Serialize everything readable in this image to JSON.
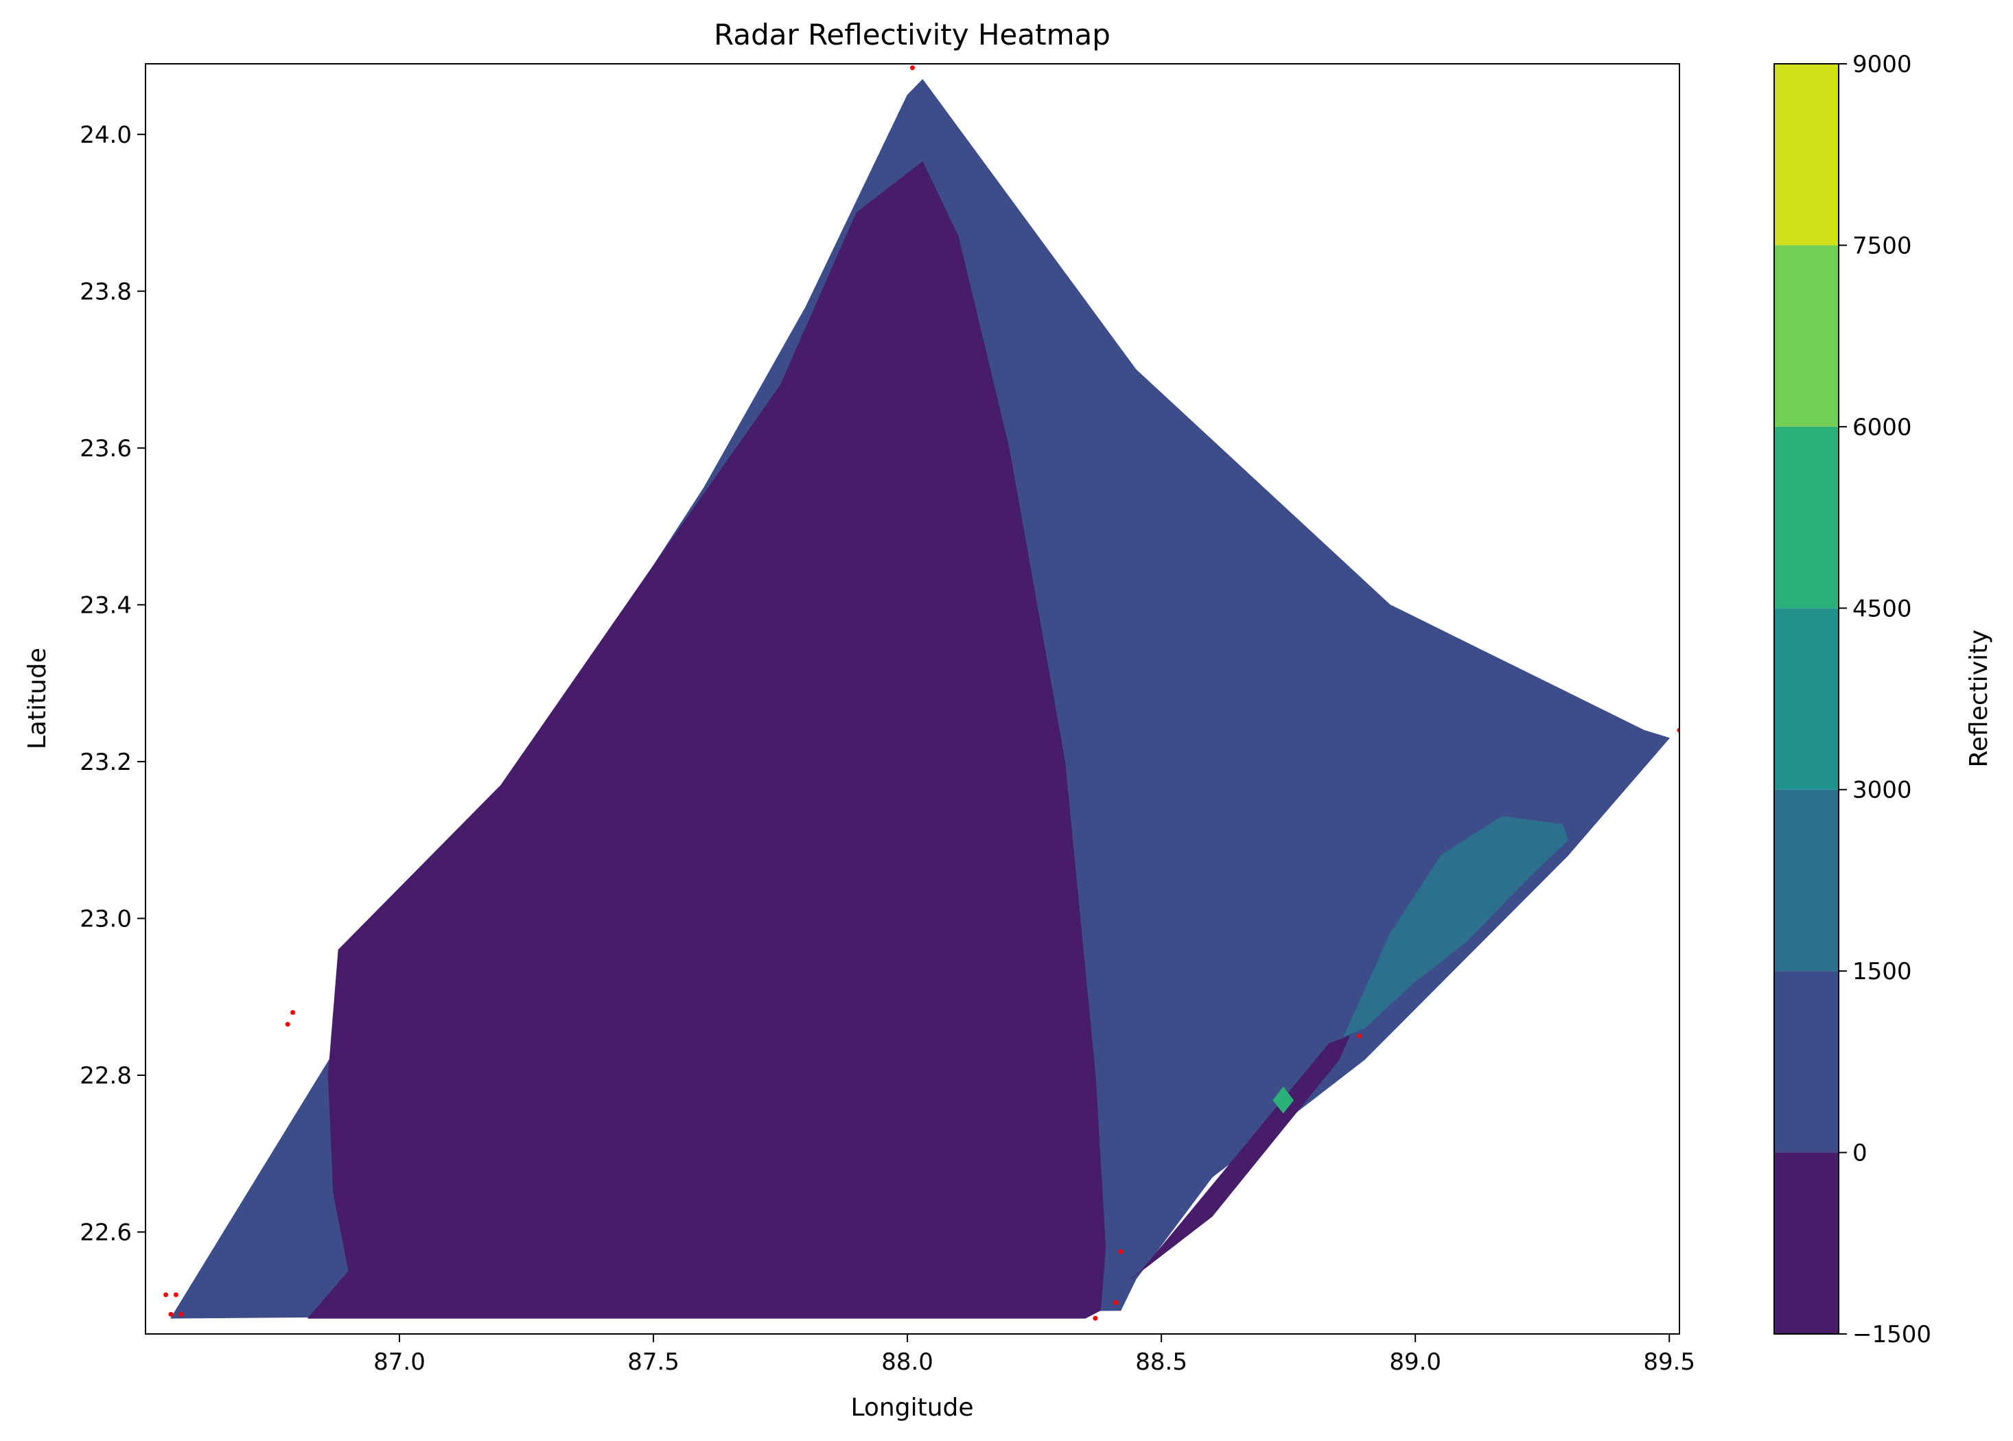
{
  "chart_data": [
    {
      "type": "heatmap",
      "subtype": "filled-contour",
      "title": "Radar Reflectivity Heatmap",
      "xlabel": "Longitude",
      "ylabel": "Latitude",
      "xlim": [
        86.5,
        89.52
      ],
      "ylim": [
        22.47,
        24.09
      ],
      "x_ticks": [
        87.0,
        87.5,
        88.0,
        88.5,
        89.0,
        89.5
      ],
      "x_tick_labels": [
        "87.0",
        "87.5",
        "88.0",
        "88.5",
        "89.0",
        "89.5"
      ],
      "y_ticks": [
        22.6,
        22.8,
        23.0,
        23.2,
        23.4,
        23.6,
        23.8,
        24.0
      ],
      "y_tick_labels": [
        "22.6",
        "22.8",
        "23.0",
        "23.2",
        "23.4",
        "23.6",
        "23.8",
        "24.0"
      ],
      "grid": false,
      "colorbar": {
        "label": "Reflectivity",
        "levels": [
          -1500,
          0,
          1500,
          3000,
          4500,
          6000,
          7500,
          9000
        ],
        "tick_labels": [
          "−1500",
          "0",
          "1500",
          "3000",
          "4500",
          "6000",
          "7500",
          "9000"
        ],
        "colors": [
          "#471c68",
          "#3c4d8a",
          "#2c708e",
          "#20918d",
          "#2ab17a",
          "#71cf56",
          "#d0e11c"
        ]
      },
      "regions": [
        {
          "level_range": [
            0,
            1500
          ],
          "color": "#3c4d8a",
          "polygon": [
            [
              86.55,
              22.49
            ],
            [
              86.72,
              22.67
            ],
            [
              86.9,
              22.86
            ],
            [
              87.1,
              23.06
            ],
            [
              87.35,
              23.3
            ],
            [
              87.6,
              23.55
            ],
            [
              87.8,
              23.78
            ],
            [
              88.0,
              24.05
            ],
            [
              88.03,
              24.07
            ],
            [
              88.45,
              23.7
            ],
            [
              88.95,
              23.4
            ],
            [
              89.45,
              23.24
            ],
            [
              89.5,
              23.23
            ],
            [
              89.3,
              23.08
            ],
            [
              88.9,
              22.82
            ],
            [
              88.6,
              22.67
            ],
            [
              88.45,
              22.54
            ],
            [
              88.42,
              22.5
            ],
            [
              86.55,
              22.49
            ]
          ]
        },
        {
          "level_range": [
            -1500,
            0
          ],
          "color": "#471c68",
          "polygon": [
            [
              86.82,
              22.49
            ],
            [
              86.9,
              22.55
            ],
            [
              86.87,
              22.65
            ],
            [
              86.86,
              22.8
            ],
            [
              86.88,
              22.96
            ],
            [
              87.2,
              23.17
            ],
            [
              87.5,
              23.45
            ],
            [
              87.75,
              23.68
            ],
            [
              87.9,
              23.9
            ],
            [
              88.03,
              23.965
            ],
            [
              88.1,
              23.87
            ],
            [
              88.2,
              23.6
            ],
            [
              88.31,
              23.2
            ],
            [
              88.37,
              22.8
            ],
            [
              88.39,
              22.58
            ],
            [
              88.38,
              22.5
            ],
            [
              88.35,
              22.49
            ]
          ]
        },
        {
          "level_range": [
            -1500,
            0
          ],
          "color": "#471c68",
          "polygon": [
            [
              88.44,
              22.54
            ],
            [
              88.6,
              22.62
            ],
            [
              88.85,
              22.82
            ],
            [
              88.87,
              22.85
            ],
            [
              88.83,
              22.84
            ],
            [
              88.55,
              22.62
            ],
            [
              88.46,
              22.55
            ]
          ]
        },
        {
          "level_range": [
            1500,
            3000
          ],
          "color": "#2c708e",
          "polygon": [
            [
              88.86,
              22.85
            ],
            [
              88.95,
              22.98
            ],
            [
              89.05,
              23.08
            ],
            [
              89.17,
              23.13
            ],
            [
              89.29,
              23.12
            ],
            [
              89.3,
              23.1
            ],
            [
              89.22,
              23.05
            ],
            [
              89.1,
              22.97
            ],
            [
              89.0,
              22.92
            ],
            [
              88.9,
              22.86
            ]
          ]
        },
        {
          "level_range": [
            3000,
            9000
          ],
          "color": "#2ab17a",
          "polygon": [
            [
              88.72,
              22.768
            ],
            [
              88.74,
              22.785
            ],
            [
              88.76,
              22.768
            ],
            [
              88.74,
              22.752
            ]
          ]
        }
      ],
      "scatter": {
        "color": "#ff0000",
        "points": [
          [
            88.01,
            24.085
          ],
          [
            86.54,
            22.52
          ],
          [
            86.56,
            22.52
          ],
          [
            86.55,
            22.495
          ],
          [
            86.57,
            22.495
          ],
          [
            86.79,
            22.88
          ],
          [
            86.78,
            22.865
          ],
          [
            88.37,
            22.49
          ],
          [
            88.41,
            22.51
          ],
          [
            88.42,
            22.575
          ],
          [
            88.89,
            22.85
          ],
          [
            89.52,
            23.24
          ]
        ]
      }
    }
  ]
}
